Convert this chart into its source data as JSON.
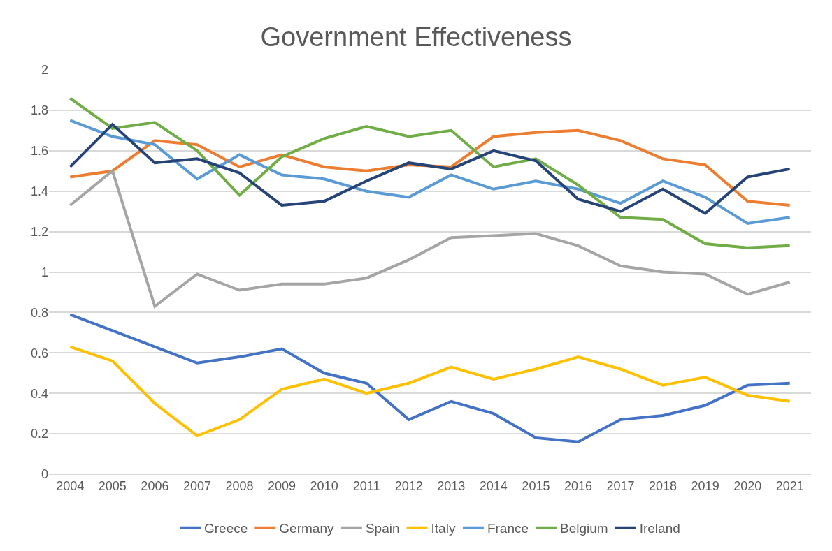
{
  "chart_data": {
    "type": "line",
    "title": "Government Effectiveness",
    "categories": [
      "2004",
      "2005",
      "2006",
      "2007",
      "2008",
      "2009",
      "2010",
      "2011",
      "2012",
      "2013",
      "2014",
      "2015",
      "2016",
      "2017",
      "2018",
      "2019",
      "2020",
      "2021"
    ],
    "series": [
      {
        "name": "Greece",
        "color": "#4472c4",
        "values": [
          0.79,
          0.71,
          0.63,
          0.55,
          0.58,
          0.62,
          0.5,
          0.45,
          0.27,
          0.36,
          0.3,
          0.18,
          0.16,
          0.27,
          0.29,
          0.34,
          0.44,
          0.45
        ]
      },
      {
        "name": "Germany",
        "color": "#ed7d31",
        "values": [
          1.47,
          1.5,
          1.65,
          1.63,
          1.52,
          1.58,
          1.52,
          1.5,
          1.53,
          1.52,
          1.67,
          1.69,
          1.7,
          1.65,
          1.56,
          1.53,
          1.35,
          1.33
        ]
      },
      {
        "name": "Spain",
        "color": "#a5a5a5",
        "values": [
          1.33,
          1.5,
          0.83,
          0.99,
          0.91,
          0.94,
          0.94,
          0.97,
          1.06,
          1.17,
          1.18,
          1.19,
          1.13,
          1.03,
          1.0,
          0.99,
          0.89,
          0.95
        ]
      },
      {
        "name": "Italy",
        "color": "#ffc000",
        "values": [
          0.63,
          0.56,
          0.35,
          0.19,
          0.27,
          0.42,
          0.47,
          0.4,
          0.45,
          0.53,
          0.47,
          0.52,
          0.58,
          0.52,
          0.44,
          0.48,
          0.39,
          0.36
        ]
      },
      {
        "name": "France",
        "color": "#5b9bd5",
        "values": [
          1.75,
          1.67,
          1.63,
          1.46,
          1.58,
          1.48,
          1.46,
          1.4,
          1.37,
          1.48,
          1.41,
          1.45,
          1.41,
          1.34,
          1.45,
          1.37,
          1.24,
          1.27
        ]
      },
      {
        "name": "Belgium",
        "color": "#70ad47",
        "values": [
          1.86,
          1.71,
          1.74,
          1.6,
          1.38,
          1.57,
          1.66,
          1.72,
          1.67,
          1.7,
          1.52,
          1.56,
          1.43,
          1.27,
          1.26,
          1.14,
          1.12,
          1.13
        ]
      },
      {
        "name": "Ireland",
        "color": "#264478",
        "values": [
          1.52,
          1.73,
          1.54,
          1.56,
          1.49,
          1.33,
          1.35,
          1.45,
          1.54,
          1.51,
          1.6,
          1.55,
          1.36,
          1.3,
          1.41,
          1.29,
          1.47,
          1.51
        ]
      }
    ],
    "ylim": [
      0,
      2
    ],
    "yticks": [
      0,
      0.2,
      0.4,
      0.6,
      0.8,
      1,
      1.2,
      1.4,
      1.6,
      1.8,
      2
    ],
    "grid": "y",
    "legend": "bottom",
    "marker": "none",
    "line_style": "solid"
  }
}
